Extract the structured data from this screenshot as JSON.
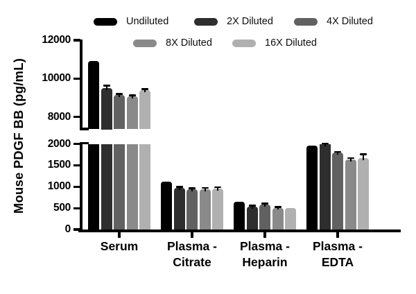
{
  "figure": {
    "ylabel": "Mouse PDGF BB (pg/mL)"
  },
  "legend": {
    "items": [
      {
        "label": "Undiluted",
        "color": "#000000"
      },
      {
        "label": "2X Diluted",
        "color": "#2e2e2e"
      },
      {
        "label": "4X Diluted",
        "color": "#616161"
      },
      {
        "label": "8X Diluted",
        "color": "#8a8a8a"
      },
      {
        "label": "16X Diluted",
        "color": "#b0b0b0"
      }
    ]
  },
  "chart_data": {
    "type": "bar",
    "title": "",
    "xlabel": "",
    "ylabel": "Mouse PDGF BB (pg/mL)",
    "grid": false,
    "legend_position": "top",
    "error_bars": true,
    "axis_break": true,
    "upper_axis": {
      "range": [
        7350,
        12000
      ],
      "ticks": [
        12000,
        10000,
        8000
      ]
    },
    "lower_axis": {
      "range": [
        0,
        2000
      ],
      "ticks": [
        2000,
        1500,
        1000,
        500,
        0
      ]
    },
    "categories": [
      "Serum",
      "Plasma - Citrate",
      "Plasma - Heparin",
      "Plasma - EDTA"
    ],
    "category_label_lines": [
      [
        "Serum"
      ],
      [
        "Plasma -",
        "Citrate"
      ],
      [
        "Plasma -",
        "Heparin"
      ],
      [
        "Plasma -",
        "EDTA"
      ]
    ],
    "series": [
      {
        "name": "Undiluted",
        "color": "#000000",
        "values": [
          10900,
          1120,
          650,
          1965
        ],
        "errors": [
          0,
          0,
          0,
          0
        ]
      },
      {
        "name": "2X Diluted",
        "color": "#2e2e2e",
        "values": [
          9500,
          975,
          530,
          1995
        ],
        "errors": [
          140,
          25,
          30,
          20
        ]
      },
      {
        "name": "4X Diluted",
        "color": "#616161",
        "values": [
          9130,
          940,
          585,
          1790
        ],
        "errors": [
          70,
          25,
          30,
          30
        ]
      },
      {
        "name": "8X Diluted",
        "color": "#8a8a8a",
        "values": [
          9060,
          945,
          510,
          1640
        ],
        "errors": [
          70,
          30,
          25,
          35
        ]
      },
      {
        "name": "16X Diluted",
        "color": "#b0b0b0",
        "values": [
          9390,
          950,
          510,
          1660
        ],
        "errors": [
          60,
          40,
          0,
          105
        ]
      }
    ]
  }
}
